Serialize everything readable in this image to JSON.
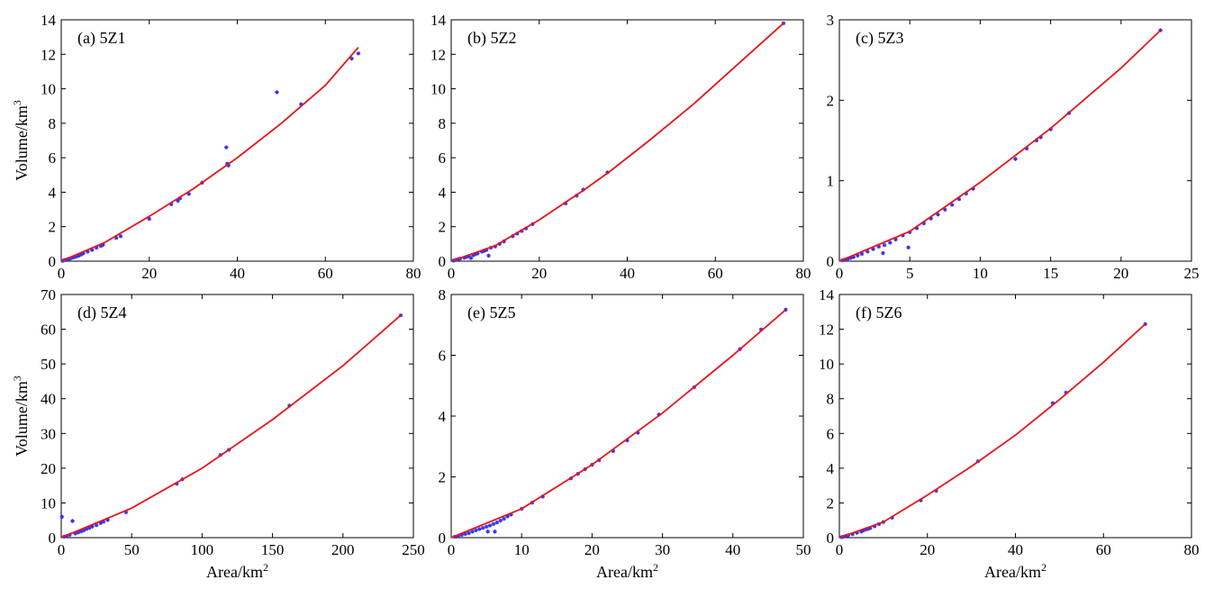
{
  "figure": {
    "ylabel_text": "Volume/km",
    "ylabel_sup": "3",
    "xlabel_text": "Area/km",
    "xlabel_sup": "2"
  },
  "colors": {
    "fit_line": "#e8141b",
    "points": "#3333ee",
    "axis": "#000000"
  },
  "chart_data": [
    {
      "type": "scatter",
      "title": "(a) 5Z1",
      "xlim": [
        0,
        80
      ],
      "ylim": [
        0,
        14
      ],
      "xticks": [
        0,
        20,
        40,
        60,
        80
      ],
      "yticks": [
        0,
        2,
        4,
        6,
        8,
        10,
        12,
        14
      ],
      "show_xlabel": false,
      "show_ylabel": true,
      "series": [
        {
          "name": "observed",
          "kind": "points",
          "x": [
            0.3,
            0.6,
            1,
            1.5,
            2,
            2.5,
            3,
            3.5,
            4,
            4.5,
            5,
            6,
            7,
            8,
            9,
            9.5,
            12.5,
            13.5,
            20,
            25,
            26.5,
            27,
            29,
            32,
            37.5,
            37.7,
            38,
            49,
            54.5,
            66,
            67.5
          ],
          "y": [
            0.02,
            0.05,
            0.08,
            0.12,
            0.15,
            0.2,
            0.23,
            0.28,
            0.32,
            0.38,
            0.45,
            0.55,
            0.65,
            0.78,
            0.88,
            0.95,
            1.35,
            1.45,
            2.45,
            3.3,
            3.5,
            3.65,
            3.9,
            4.55,
            6.6,
            5.65,
            5.55,
            9.8,
            9.1,
            11.75,
            12.05
          ]
        },
        {
          "name": "fit",
          "kind": "line",
          "x": [
            0,
            10,
            20,
            30,
            40,
            50,
            60,
            67.5
          ],
          "y": [
            0,
            1.1,
            2.6,
            4.2,
            6.0,
            8.0,
            10.2,
            12.4
          ]
        }
      ]
    },
    {
      "type": "scatter",
      "title": "(b) 5Z2",
      "xlim": [
        0,
        80
      ],
      "ylim": [
        0,
        14
      ],
      "xticks": [
        0,
        20,
        40,
        60,
        80
      ],
      "yticks": [
        0,
        2,
        4,
        6,
        8,
        10,
        12,
        14
      ],
      "show_xlabel": false,
      "show_ylabel": false,
      "series": [
        {
          "name": "observed",
          "kind": "points",
          "x": [
            0.5,
            1,
            1.5,
            2,
            3,
            3.5,
            4,
            4.5,
            5,
            5.5,
            6,
            7,
            7.5,
            8,
            8.5,
            9,
            10,
            11,
            12,
            14,
            15,
            16,
            17,
            18.5,
            26,
            28.5,
            30,
            35.5,
            75.5
          ],
          "y": [
            0.03,
            0.07,
            0.11,
            0.15,
            0.2,
            0.25,
            0.3,
            0.18,
            0.35,
            0.4,
            0.45,
            0.55,
            0.6,
            0.65,
            0.32,
            0.78,
            0.85,
            1.0,
            1.15,
            1.45,
            1.6,
            1.75,
            1.9,
            2.15,
            3.35,
            3.8,
            4.15,
            5.15,
            13.8
          ]
        },
        {
          "name": "fit",
          "kind": "line",
          "x": [
            0,
            10,
            20,
            30,
            36,
            45,
            55,
            65,
            75.5
          ],
          "y": [
            0,
            0.9,
            2.4,
            4.1,
            5.2,
            7.0,
            9.1,
            11.4,
            13.8
          ]
        }
      ]
    },
    {
      "type": "scatter",
      "title": "(c) 5Z3",
      "xlim": [
        0,
        25
      ],
      "ylim": [
        0,
        3
      ],
      "xticks": [
        0,
        5,
        10,
        15,
        20,
        25
      ],
      "yticks": [
        0,
        1,
        2,
        3
      ],
      "show_xlabel": false,
      "show_ylabel": false,
      "series": [
        {
          "name": "observed",
          "kind": "points",
          "x": [
            0.2,
            0.4,
            0.6,
            0.8,
            1,
            1.3,
            1.6,
            2,
            2.4,
            2.8,
            3.1,
            3.2,
            3.6,
            4,
            4.5,
            4.9,
            5,
            5.5,
            6,
            6.5,
            7,
            7.5,
            8,
            8.5,
            9,
            9.5,
            12.5,
            13.3,
            14,
            14.3,
            15,
            16.3,
            22.8
          ],
          "y": [
            0.01,
            0.02,
            0.03,
            0.04,
            0.05,
            0.07,
            0.09,
            0.12,
            0.15,
            0.18,
            0.1,
            0.2,
            0.23,
            0.27,
            0.32,
            0.17,
            0.36,
            0.41,
            0.47,
            0.53,
            0.58,
            0.64,
            0.7,
            0.77,
            0.84,
            0.9,
            1.27,
            1.4,
            1.5,
            1.54,
            1.64,
            1.84,
            2.87
          ]
        },
        {
          "name": "fit",
          "kind": "line",
          "x": [
            0,
            5,
            10,
            15,
            20,
            22.8
          ],
          "y": [
            0,
            0.37,
            0.98,
            1.65,
            2.4,
            2.87
          ]
        }
      ]
    },
    {
      "type": "scatter",
      "title": "(d) 5Z4",
      "xlim": [
        0,
        250
      ],
      "ylim": [
        0,
        70
      ],
      "xticks": [
        0,
        50,
        100,
        150,
        200,
        250
      ],
      "yticks": [
        0,
        10,
        20,
        30,
        40,
        50,
        60,
        70
      ],
      "show_xlabel": true,
      "show_ylabel": true,
      "series": [
        {
          "name": "observed",
          "kind": "points",
          "x": [
            0.5,
            2,
            4,
            6,
            8,
            10,
            12,
            14,
            16,
            18,
            20,
            22,
            25,
            28,
            30,
            33,
            46,
            82,
            86,
            113,
            119,
            162,
            241
          ],
          "y": [
            6.0,
            0.3,
            0.5,
            0.8,
            4.8,
            1.2,
            1.5,
            1.8,
            2.1,
            2.5,
            2.8,
            3.2,
            3.6,
            4.2,
            4.6,
            5.1,
            7.3,
            15.5,
            16.8,
            23.8,
            25.3,
            38.0,
            64.0
          ]
        },
        {
          "name": "fit",
          "kind": "line",
          "x": [
            0,
            50,
            100,
            150,
            200,
            241
          ],
          "y": [
            0,
            8.5,
            20.0,
            34.0,
            49.5,
            64.0
          ]
        }
      ]
    },
    {
      "type": "scatter",
      "title": "(e) 5Z5",
      "xlim": [
        0,
        50
      ],
      "ylim": [
        0,
        8
      ],
      "xticks": [
        0,
        10,
        20,
        30,
        40,
        50
      ],
      "yticks": [
        0,
        2,
        4,
        6,
        8
      ],
      "show_xlabel": true,
      "show_ylabel": false,
      "series": [
        {
          "name": "observed",
          "kind": "points",
          "x": [
            0.5,
            1,
            1.5,
            2,
            2.5,
            3,
            3.5,
            4,
            4.5,
            5,
            5.2,
            5.5,
            6,
            6.2,
            6.5,
            7,
            7.5,
            8,
            8.5,
            10,
            11.5,
            13,
            17,
            18,
            19,
            20,
            21,
            23,
            25,
            26.5,
            29.5,
            34.5,
            41,
            44,
            47.5
          ],
          "y": [
            0.03,
            0.06,
            0.09,
            0.12,
            0.15,
            0.2,
            0.24,
            0.28,
            0.32,
            0.36,
            0.2,
            0.4,
            0.45,
            0.2,
            0.5,
            0.56,
            0.62,
            0.7,
            0.76,
            0.95,
            1.15,
            1.35,
            1.95,
            2.1,
            2.25,
            2.4,
            2.55,
            2.85,
            3.2,
            3.45,
            4.05,
            4.95,
            6.2,
            6.85,
            7.5
          ]
        },
        {
          "name": "fit",
          "kind": "line",
          "x": [
            0,
            10,
            20,
            30,
            40,
            47.5
          ],
          "y": [
            0,
            0.95,
            2.4,
            4.1,
            6.0,
            7.5
          ]
        }
      ]
    },
    {
      "type": "scatter",
      "title": "(f) 5Z6",
      "xlim": [
        0,
        80
      ],
      "ylim": [
        0,
        14
      ],
      "xticks": [
        0,
        20,
        40,
        60,
        80
      ],
      "yticks": [
        0,
        2,
        4,
        6,
        8,
        10,
        12,
        14
      ],
      "show_xlabel": true,
      "show_ylabel": false,
      "series": [
        {
          "name": "observed",
          "kind": "points",
          "x": [
            0.5,
            1,
            1.5,
            2,
            3,
            4,
            5,
            5.5,
            6,
            6.5,
            7,
            8,
            9,
            10,
            12,
            18.5,
            22,
            31.5,
            48.5,
            51.5,
            69.5
          ],
          "y": [
            0.03,
            0.06,
            0.1,
            0.13,
            0.2,
            0.28,
            0.35,
            0.42,
            0.48,
            0.5,
            0.55,
            0.65,
            0.78,
            0.9,
            1.15,
            2.15,
            2.7,
            4.4,
            7.75,
            8.35,
            12.3
          ]
        },
        {
          "name": "fit",
          "kind": "line",
          "x": [
            0,
            10,
            20,
            30,
            40,
            50,
            60,
            69.5
          ],
          "y": [
            0,
            0.9,
            2.45,
            4.1,
            5.9,
            7.95,
            10.1,
            12.3
          ]
        }
      ]
    }
  ]
}
